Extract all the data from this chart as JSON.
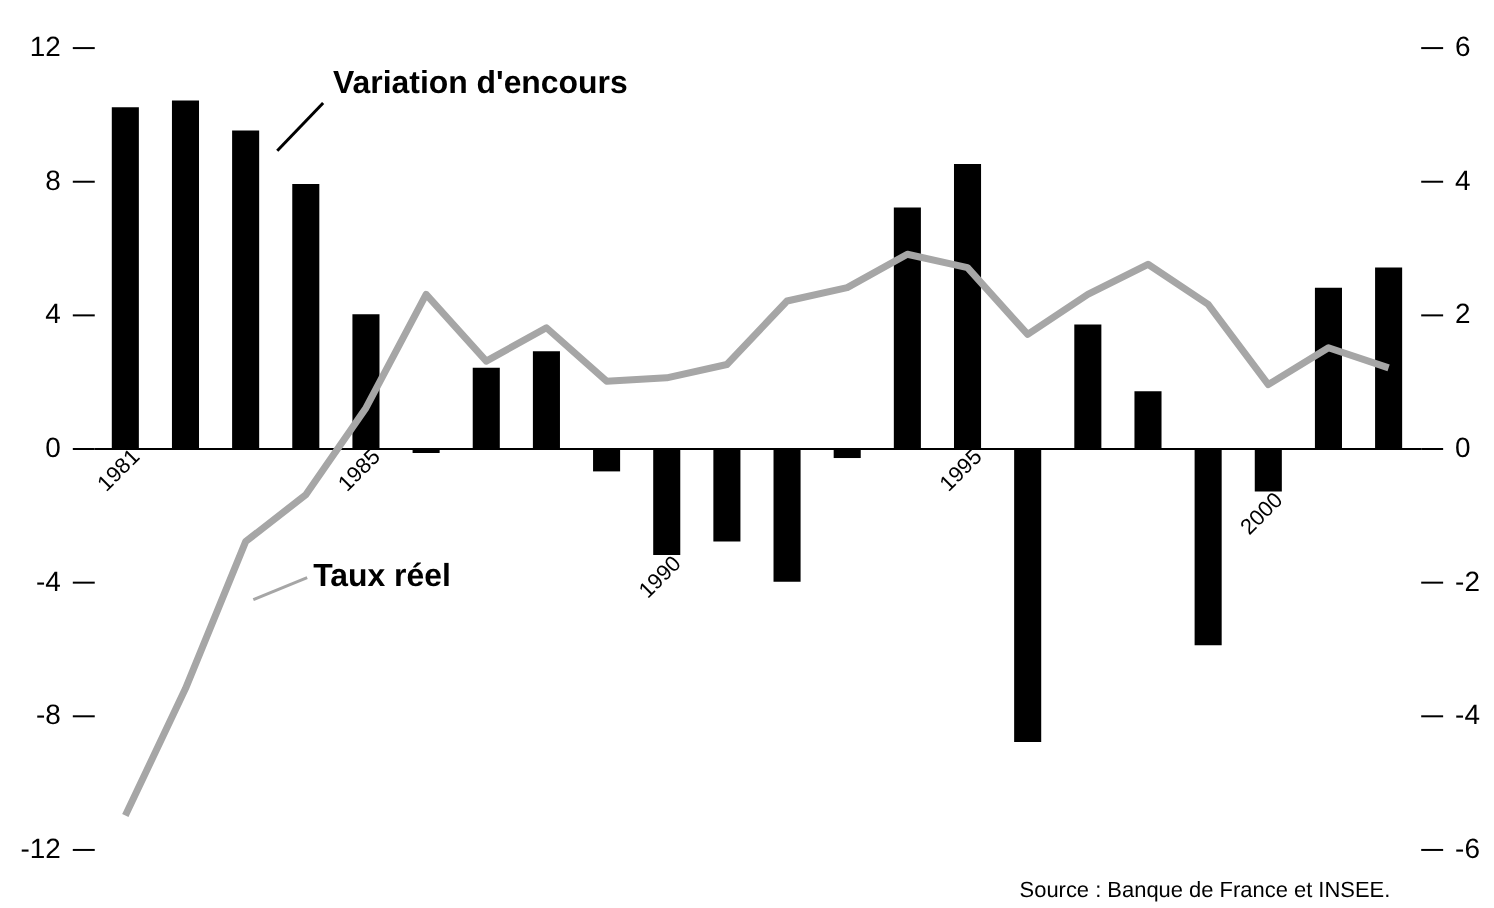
{
  "chart_data": {
    "type": "bar",
    "categories": [
      "1981",
      null,
      null,
      null,
      "1985",
      null,
      null,
      null,
      null,
      "1990",
      null,
      null,
      null,
      null,
      "1995",
      null,
      null,
      null,
      null,
      "2000",
      null,
      null
    ],
    "series": [
      {
        "name": "Variation d'encours",
        "color": "#000000",
        "values": [
          10.2,
          10.4,
          9.5,
          7.9,
          4.0,
          -0.15,
          2.4,
          2.9,
          -0.7,
          -3.2,
          -2.8,
          -4.0,
          -0.3,
          7.2,
          8.5,
          -8.8,
          3.7,
          1.7,
          -5.9,
          -1.3,
          4.8,
          5.4
        ]
      },
      {
        "name": "Taux réel",
        "type": "line",
        "axis": "y2",
        "color": "#a6a6a6",
        "values": [
          -5.5,
          -3.6,
          -1.4,
          -0.7,
          0.6,
          2.3,
          1.3,
          1.8,
          1.0,
          1.05,
          1.25,
          2.2,
          2.4,
          2.9,
          2.7,
          1.7,
          2.3,
          2.75,
          2.15,
          0.95,
          1.5,
          1.2
        ]
      }
    ],
    "ylim": [
      -12,
      12
    ],
    "yticks": [
      -12,
      -8,
      -4,
      0,
      4,
      8,
      12
    ],
    "y2lim": [
      -6,
      6
    ],
    "y2ticks": [
      -6,
      -4,
      -2,
      0,
      2,
      4,
      6
    ],
    "annotations": [
      "Source : Banque de France et INSEE."
    ]
  }
}
